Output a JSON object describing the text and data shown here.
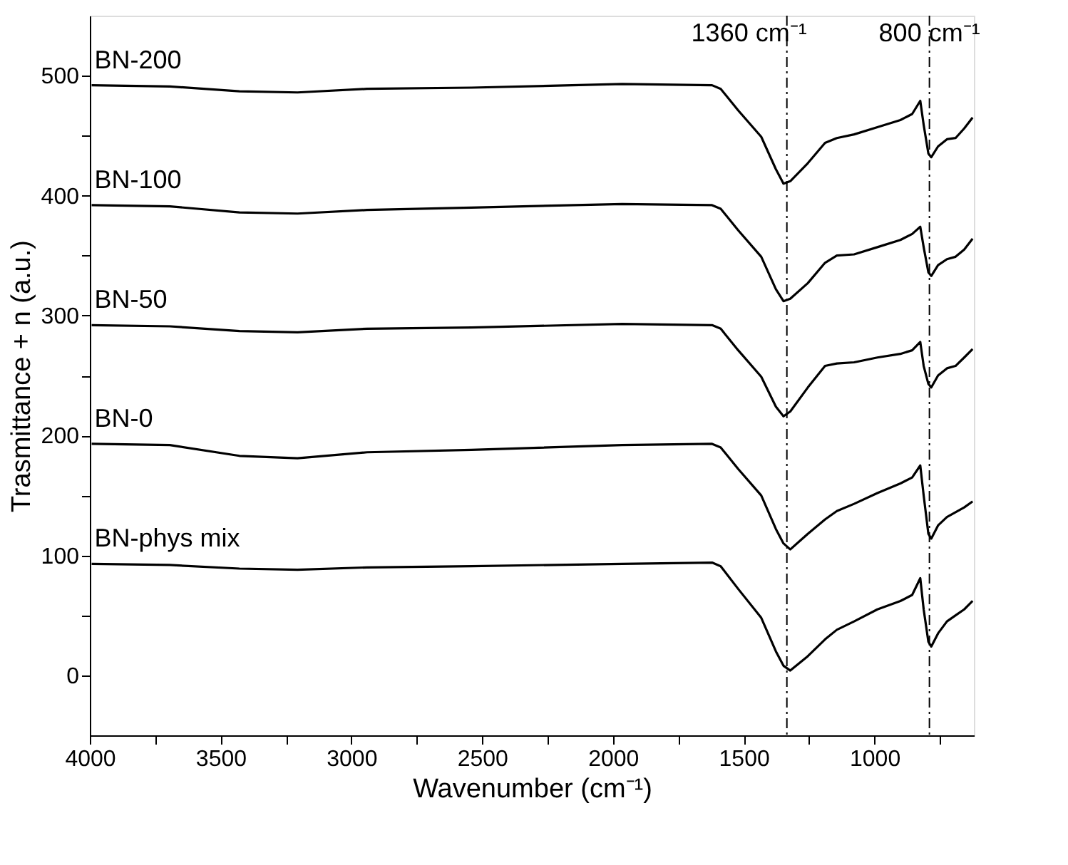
{
  "chart_data": {
    "type": "line",
    "xlabel": "Wavenumber (cm⁻¹)",
    "ylabel": "Trasmittance + n (a.u.)",
    "x": [
      3993,
      3694,
      3428,
      3206,
      2940,
      2541,
      1965,
      1621,
      1588,
      1521,
      1433,
      1377,
      1348,
      1322,
      1255,
      1189,
      1144,
      1078,
      989,
      901,
      856,
      825,
      812,
      794,
      783,
      757,
      723,
      690,
      657,
      625
    ],
    "series": [
      {
        "name": "BN-200",
        "color": "#000000",
        "values": [
          492,
          491,
          487,
          486,
          489,
          490,
          493,
          492,
          489,
          471,
          449,
          422,
          410,
          412,
          427,
          444,
          448,
          451,
          457,
          463,
          468,
          479,
          459,
          435,
          432,
          441,
          447,
          448,
          456,
          465
        ]
      },
      {
        "name": "BN-100",
        "color": "#000000",
        "values": [
          392,
          391,
          386,
          385,
          388,
          390,
          393,
          392,
          389,
          371,
          349,
          322,
          312,
          314,
          327,
          344,
          350,
          351,
          357,
          363,
          368,
          374,
          357,
          336,
          333,
          342,
          347,
          349,
          355,
          364
        ]
      },
      {
        "name": "BN-50",
        "color": "#000000",
        "values": [
          292,
          291,
          287,
          286,
          289,
          290,
          293,
          292,
          289,
          271,
          249,
          224,
          216,
          220,
          240,
          258,
          260,
          261,
          265,
          268,
          271,
          278,
          258,
          243,
          240,
          250,
          256,
          258,
          265,
          272
        ]
      },
      {
        "name": "BN-0",
        "color": "#000000",
        "values": [
          193,
          192,
          183,
          181,
          186,
          188,
          192,
          193,
          190,
          172,
          150,
          122,
          110,
          105,
          118,
          130,
          137,
          143,
          152,
          160,
          165,
          175,
          150,
          118,
          114,
          125,
          132,
          136,
          140,
          145
        ]
      },
      {
        "name": "BN-phys mix",
        "color": "#000000",
        "values": [
          93,
          92,
          89,
          88,
          90,
          91,
          93,
          94,
          91,
          72,
          48,
          20,
          8,
          4,
          16,
          30,
          38,
          45,
          55,
          62,
          67,
          81,
          55,
          28,
          24,
          35,
          45,
          50,
          55,
          62
        ]
      }
    ],
    "xlim": [
      4000,
      620
    ],
    "xticks": [
      4000,
      {
        "value": 3750,
        "label": null
      },
      3500,
      {
        "value": 3250,
        "label": null
      },
      3000,
      {
        "value": 2750,
        "label": null
      },
      2500,
      {
        "value": 2250,
        "label": null
      },
      2000,
      {
        "value": 1750,
        "label": null
      },
      1500,
      {
        "value": 1250,
        "label": null
      },
      1000,
      {
        "value": 750,
        "label": null
      }
    ],
    "ylim": [
      -50,
      550
    ],
    "yticks": [
      0,
      {
        "value": 50,
        "label": null
      },
      100,
      {
        "value": 150,
        "label": null
      },
      200,
      {
        "value": 250,
        "label": null
      },
      300,
      {
        "value": 350,
        "label": null
      },
      400,
      {
        "value": 450,
        "label": null
      },
      500
    ],
    "ref_lines": [
      {
        "axis": "x",
        "value": 1335,
        "label": "1360 cm⁻¹",
        "color": "#000000",
        "line_style": "dashdot"
      },
      {
        "axis": "x",
        "value": 790,
        "label": "800 cm⁻¹",
        "color": "#000000",
        "line_style": "dashdot"
      }
    ],
    "marker": "none",
    "line_style": "solid",
    "grid": false,
    "legend": false
  }
}
